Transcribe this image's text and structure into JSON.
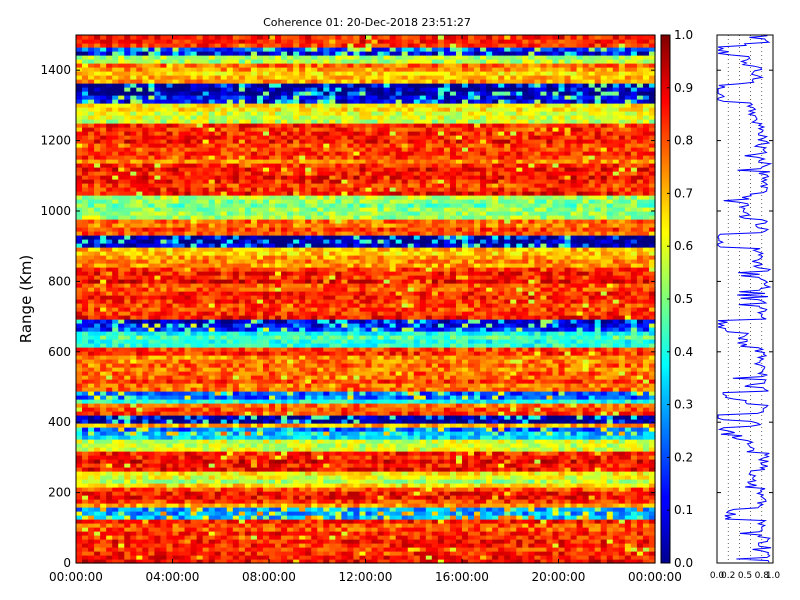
{
  "figure": {
    "title": "Coherence 01: 20-Dec-2018 23:51:27"
  },
  "chart_data": [
    {
      "type": "heatmap",
      "title": "Coherence 01: 20-Dec-2018 23:51:27",
      "xlabel": "",
      "ylabel": "Range (Km)",
      "x_ticks": [
        "00:00:00",
        "04:00:00",
        "08:00:00",
        "12:00:00",
        "16:00:00",
        "20:00:00",
        "00:00:00"
      ],
      "x_range_hours": [
        0,
        24
      ],
      "y_ticks": [
        0,
        200,
        400,
        600,
        800,
        1000,
        1200,
        1400
      ],
      "y_range": [
        0,
        1500
      ],
      "value_range": [
        0,
        1
      ],
      "colormap": "jet",
      "range_profile_km": [
        [
          0,
          0.86
        ],
        [
          100,
          0.84
        ],
        [
          150,
          0.25
        ],
        [
          160,
          0.78
        ],
        [
          200,
          0.82
        ],
        [
          230,
          0.6
        ],
        [
          300,
          0.85
        ],
        [
          330,
          0.62
        ],
        [
          370,
          0.35
        ],
        [
          380,
          0.15
        ],
        [
          395,
          0.7
        ],
        [
          410,
          0.05
        ],
        [
          440,
          0.8
        ],
        [
          460,
          0.45
        ],
        [
          470,
          0.2
        ],
        [
          500,
          0.82
        ],
        [
          600,
          0.78
        ],
        [
          630,
          0.45
        ],
        [
          680,
          0.1
        ],
        [
          700,
          0.83
        ],
        [
          800,
          0.84
        ],
        [
          880,
          0.72
        ],
        [
          910,
          0.02
        ],
        [
          960,
          0.8
        ],
        [
          1000,
          0.5
        ],
        [
          1100,
          0.85
        ],
        [
          1180,
          0.78
        ],
        [
          1200,
          0.84
        ],
        [
          1300,
          0.62
        ],
        [
          1320,
          0.05
        ],
        [
          1400,
          0.72
        ],
        [
          1430,
          0.5
        ],
        [
          1460,
          0.1
        ],
        [
          1480,
          0.85
        ]
      ]
    },
    {
      "type": "colorbar",
      "ticks": [
        "0.0",
        "0.1",
        "0.2",
        "0.3",
        "0.4",
        "0.5",
        "0.6",
        "0.7",
        "0.8",
        "0.9",
        "1.0"
      ],
      "range": [
        0,
        1
      ]
    },
    {
      "type": "line",
      "series": [
        {
          "color": "#0000ff"
        }
      ],
      "x_ticks": [
        "0.0",
        "0.2",
        "0.5",
        "0.8",
        "1.0"
      ],
      "xlim": [
        0,
        1
      ],
      "ylim": [
        0,
        1500
      ],
      "gridlines_x": [
        0.2,
        0.4,
        0.6,
        0.8
      ]
    }
  ],
  "colors": {
    "line": "#0000ff",
    "frame": "#000000"
  }
}
